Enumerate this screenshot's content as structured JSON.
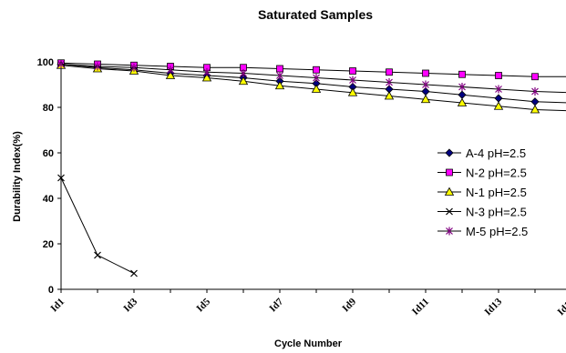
{
  "chart_data": {
    "type": "line",
    "title": "Saturated Samples",
    "xlabel": "Cycle Number",
    "ylabel": "Durability Index(%)",
    "ylim": [
      0,
      100
    ],
    "yticks": [
      0,
      20,
      40,
      60,
      80,
      100
    ],
    "x_count": 15,
    "xtick_labels": [
      "Id1",
      "Id3",
      "Id5",
      "Id7",
      "Id9",
      "Id11",
      "Id13",
      "Id15"
    ],
    "xtick_indices": [
      1,
      3,
      5,
      7,
      9,
      11,
      13,
      15
    ],
    "grid": false,
    "legend_position": "right",
    "series": [
      {
        "name": "A-4 pH=2.5",
        "marker": "diamond",
        "color": "#000080",
        "values": [
          99,
          97.5,
          96.5,
          95,
          94,
          93,
          91.5,
          90.5,
          89,
          88,
          87,
          85.5,
          84,
          82.5,
          82
        ]
      },
      {
        "name": "N-2 pH=2.5",
        "marker": "square",
        "color": "#FF00FF",
        "values": [
          99.5,
          99,
          98.5,
          98,
          97.5,
          97.5,
          97,
          96.5,
          96,
          95.5,
          95,
          94.5,
          94,
          93.5,
          93.5
        ]
      },
      {
        "name": "N-1 pH=2.5",
        "marker": "triangle",
        "color": "#FFFF00",
        "values": [
          98.5,
          97,
          96,
          94,
          93,
          91.5,
          89.5,
          88,
          86.5,
          85,
          83.5,
          82,
          80.5,
          79,
          78.5
        ]
      },
      {
        "name": "N-3 pH=2.5",
        "marker": "x",
        "color": "#000000",
        "values": [
          49,
          15,
          7
        ]
      },
      {
        "name": "M-5 pH=2.5",
        "marker": "star",
        "color": "#800080",
        "values": [
          99,
          98,
          97.5,
          96.5,
          95.5,
          95,
          94,
          93,
          92,
          91,
          90,
          89,
          88,
          87,
          86.5
        ]
      }
    ]
  }
}
